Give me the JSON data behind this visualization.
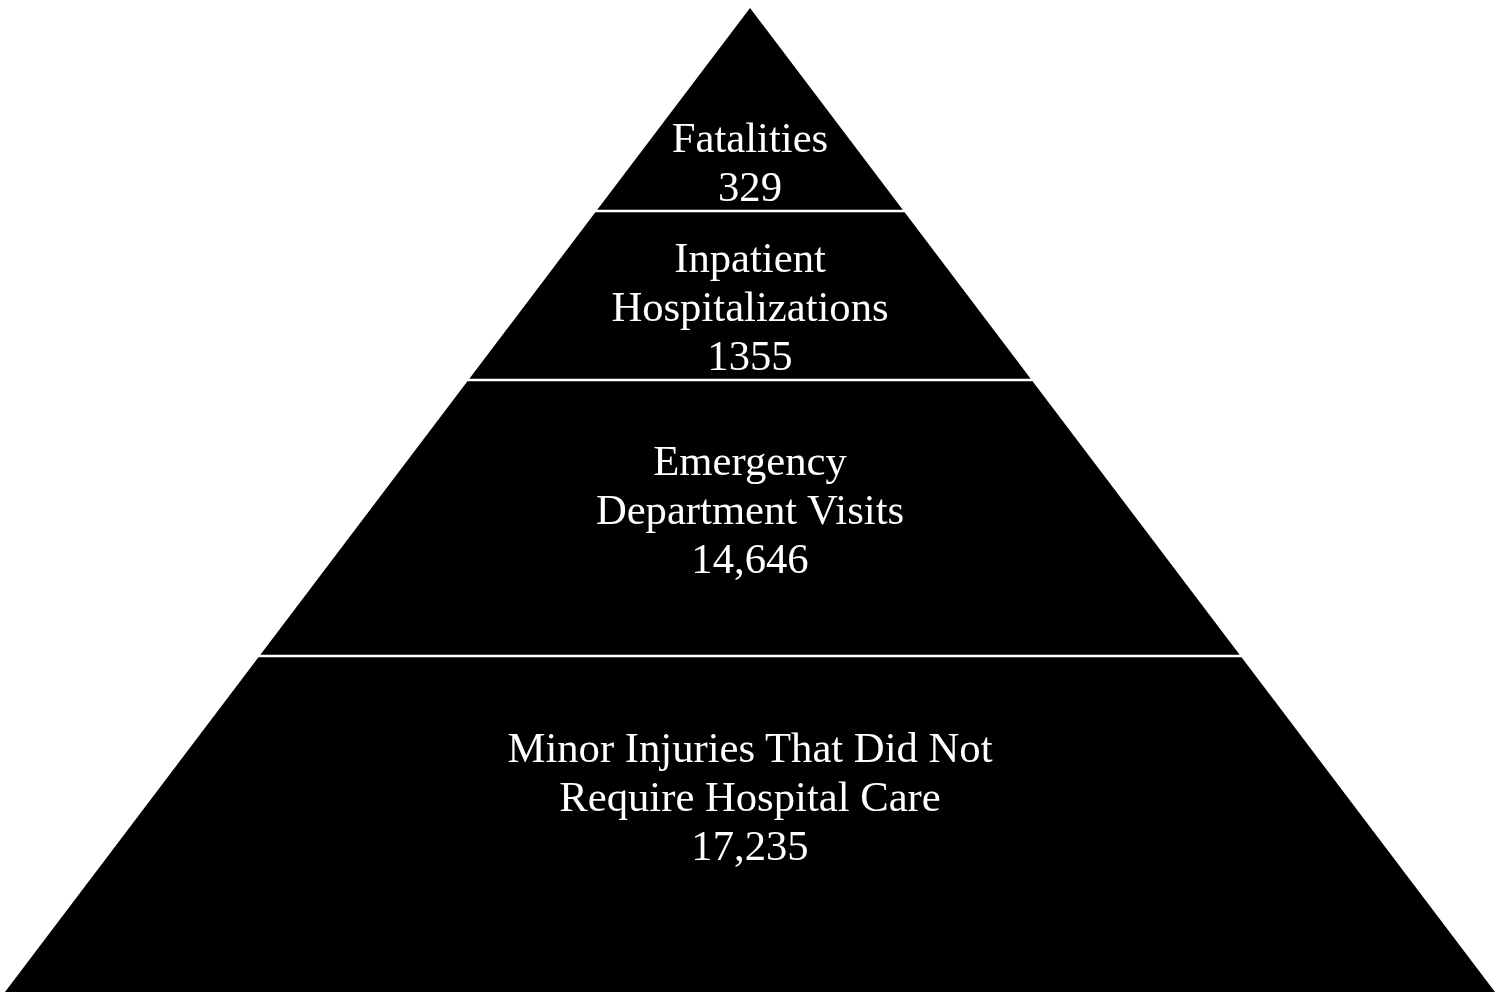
{
  "chart_data": {
    "type": "other",
    "categories": [
      "Fatalities",
      "Inpatient Hospitalizations",
      "Emergency Department Visits",
      "Minor Injuries That Did Not Require Hospital Care"
    ],
    "values": [
      329,
      1355,
      14646,
      17235
    ],
    "value_labels": [
      "329",
      "1355",
      "14,646",
      "17,235"
    ],
    "color": "#000000"
  }
}
